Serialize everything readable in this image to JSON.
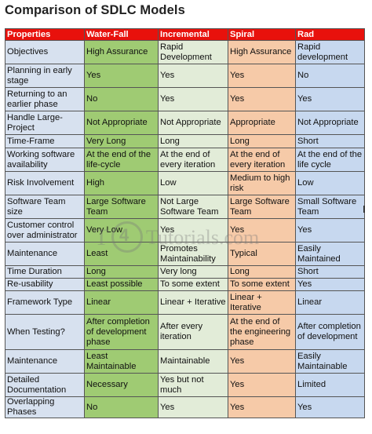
{
  "title": "Comparison of SDLC Models",
  "headers": [
    "Properties",
    "Water-Fall",
    "Incremental",
    "Spiral",
    "Rad"
  ],
  "rows": [
    [
      "Objectives",
      "High Assurance",
      "Rapid Development",
      "High Assurance",
      "Rapid development"
    ],
    [
      "Planning in early stage",
      "Yes",
      "Yes",
      "Yes",
      "No"
    ],
    [
      "Returning to an earlier phase",
      "No",
      "Yes",
      "Yes",
      "Yes"
    ],
    [
      "Handle Large-Project",
      "Not Appropriate",
      "Not Appropriate",
      "Appropriate",
      "Not Appropriate"
    ],
    [
      "Time-Frame",
      "Very Long",
      "Long",
      "Long",
      "Short"
    ],
    [
      "Working software availability",
      "At the end of the life-cycle",
      "At the end of every iteration",
      "At the end of every iteration",
      "At the end of the life cycle"
    ],
    [
      "Risk Involvement",
      "High",
      "Low",
      "Medium to high risk",
      "Low"
    ],
    [
      "Software Team size",
      "Large Software Team",
      "Not Large Software Team",
      "Large Software Team",
      "Small Software Team"
    ],
    [
      "Customer control over administrator",
      "Very Low",
      "Yes",
      "Yes",
      "Yes"
    ],
    [
      "Maintenance",
      "Least",
      "Promotes Maintainability",
      "Typical",
      "Easily Maintained"
    ],
    [
      "Time Duration",
      "Long",
      "Very long",
      "Long",
      "Short"
    ],
    [
      "Re-usability",
      "Least possible",
      "To some extent",
      "To some extent",
      "Yes"
    ],
    [
      "Framework Type",
      "Linear",
      "Linear + Iterative",
      "Linear + Iterative",
      "Linear"
    ],
    [
      "When Testing?",
      "After completion of development phase",
      "After every iteration",
      "At the end of the engineering phase",
      "After completion of development"
    ],
    [
      "Maintenance",
      "Least Maintainable",
      "Maintainable",
      "Yes",
      "Easily Maintainable"
    ],
    [
      "Detailed Documentation",
      "Necessary",
      "Yes but not much",
      "Yes",
      "Limited"
    ],
    [
      "Overlapping Phases",
      "No",
      "Yes",
      "Yes",
      "Yes"
    ]
  ],
  "watermark": {
    "prefix": "T",
    "digit": "4",
    "rest": "Tutorials.com"
  }
}
